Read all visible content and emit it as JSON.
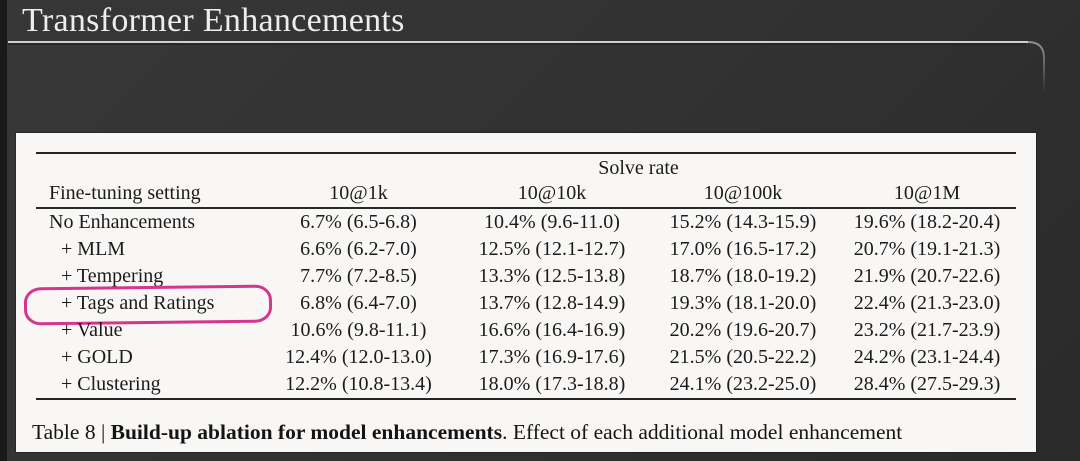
{
  "slide": {
    "title": "Transformer Enhancements"
  },
  "table": {
    "group_header": "Solve rate",
    "columns": [
      "Fine-tuning setting",
      "10@1k",
      "10@10k",
      "10@100k",
      "10@1M"
    ],
    "rows": [
      {
        "setting": "No Enhancements",
        "values": [
          "6.7% (6.5-6.8)",
          "10.4% (9.6-11.0)",
          "15.2% (14.3-15.9)",
          "19.6% (18.2-20.4)"
        ],
        "highlighted": false
      },
      {
        "setting": "+ MLM",
        "values": [
          "6.6% (6.2-7.0)",
          "12.5% (12.1-12.7)",
          "17.0% (16.5-17.2)",
          "20.7% (19.1-21.3)"
        ],
        "highlighted": false
      },
      {
        "setting": "+ Tempering",
        "values": [
          "7.7% (7.2-8.5)",
          "13.3% (12.5-13.8)",
          "18.7% (18.0-19.2)",
          "21.9% (20.7-22.6)"
        ],
        "highlighted": false
      },
      {
        "setting": "+ Tags and Ratings",
        "values": [
          "6.8% (6.4-7.0)",
          "13.7% (12.8-14.9)",
          "19.3% (18.1-20.0)",
          "22.4% (21.3-23.0)"
        ],
        "highlighted": true
      },
      {
        "setting": "+ Value",
        "values": [
          "10.6% (9.8-11.1)",
          "16.6% (16.4-16.9)",
          "20.2% (19.6-20.7)",
          "23.2% (21.7-23.9)"
        ],
        "highlighted": false
      },
      {
        "setting": "+ GOLD",
        "values": [
          "12.4% (12.0-13.0)",
          "17.3% (16.9-17.6)",
          "21.5% (20.5-22.2)",
          "24.2% (23.1-24.4)"
        ],
        "highlighted": false
      },
      {
        "setting": "+ Clustering",
        "values": [
          "12.2% (10.8-13.4)",
          "18.0% (17.3-18.8)",
          "24.1% (23.2-25.0)",
          "28.4% (27.5-29.3)"
        ],
        "highlighted": false
      }
    ]
  },
  "caption": {
    "prefix": "Table 8 | ",
    "bold": "Build-up ablation for model enhancements",
    "rest": ". Effect of each additional model enhancement"
  },
  "annotation": {
    "shape": "hand-drawn-oval",
    "color": "#d5358e",
    "target": "+ Tags and Ratings"
  }
}
